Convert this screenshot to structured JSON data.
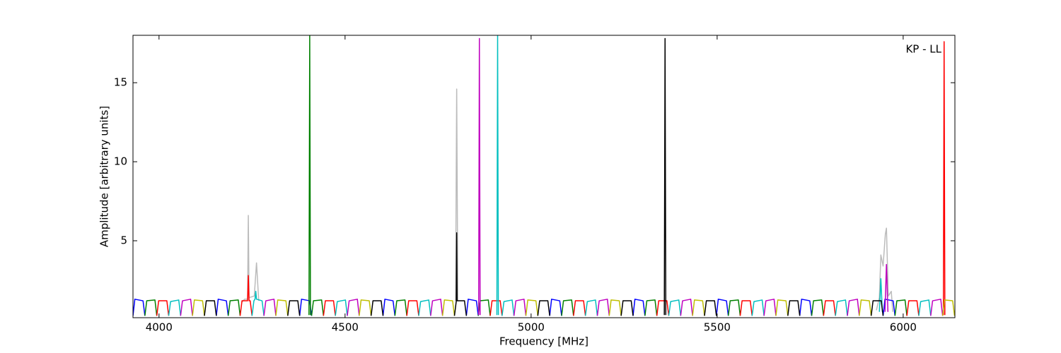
{
  "chart_data": {
    "type": "line",
    "xlabel": "Frequency [MHz]",
    "ylabel": "Amplitude [arbitrary units]",
    "annotation": "KP - LL",
    "xlim": [
      3930,
      6139
    ],
    "ylim": [
      0.13,
      18
    ],
    "xticks": [
      4000,
      4500,
      5000,
      5500,
      6000
    ],
    "yticks": [
      5,
      10,
      15
    ],
    "series": [
      {
        "color": "#bbbbbb",
        "x": [
          4222,
          4230,
          4238,
          4240,
          4242,
          4256,
          4262,
          4268,
          null,
          4797,
          4800,
          4803,
          null,
          5928,
          5936,
          5940,
          5946,
          5952,
          5955,
          5960,
          5968,
          5972
        ],
        "values": [
          1.1,
          1.3,
          1.3,
          6.6,
          1.4,
          1.5,
          3.6,
          1.2,
          null,
          1.2,
          14.6,
          1.2,
          null,
          0.6,
          1.4,
          4.1,
          3.4,
          5.4,
          5.8,
          1.5,
          1.8,
          0.5
        ]
      },
      {
        "color": "#0000ff",
        "x": [
          3930,
          3935,
          3957,
          3962,
          null,
          4154,
          4159,
          4181,
          4186,
          null,
          4378,
          4383,
          4405,
          4410,
          null,
          4602,
          4607,
          4629,
          4634,
          null,
          4826,
          4831,
          4853,
          4858,
          null,
          5050,
          5055,
          5077,
          5082,
          null,
          5274,
          5279,
          5301,
          5306,
          null,
          5498,
          5503,
          5525,
          5530,
          null,
          5722,
          5727,
          5749,
          5754,
          null,
          5946,
          5951,
          5973,
          5978
        ],
        "values": [
          0.25,
          1.3,
          1.2,
          0.25,
          null,
          0.25,
          1.3,
          1.2,
          0.25,
          null,
          0.25,
          1.3,
          1.2,
          0.25,
          null,
          0.25,
          1.3,
          1.2,
          0.25,
          null,
          0.25,
          1.3,
          1.2,
          0.25,
          null,
          0.25,
          1.3,
          1.2,
          0.25,
          null,
          0.25,
          1.3,
          1.2,
          0.25,
          null,
          0.25,
          1.3,
          1.2,
          0.25,
          null,
          0.25,
          1.3,
          1.2,
          0.25,
          null,
          0.25,
          1.3,
          1.2,
          0.25
        ]
      },
      {
        "color": "#008000",
        "x": [
          3962,
          3967,
          3989,
          3994,
          null,
          4186,
          4191,
          4213,
          4218,
          null,
          4410,
          4415,
          4437,
          4442,
          null,
          4634,
          4639,
          4661,
          4666,
          null,
          4858,
          4863,
          4885,
          4890,
          null,
          5082,
          5087,
          5109,
          5114,
          null,
          5306,
          5311,
          5333,
          5338,
          null,
          5530,
          5535,
          5557,
          5562,
          null,
          5754,
          5759,
          5781,
          5786,
          null,
          5978,
          5983,
          6005,
          6010,
          null,
          4403,
          4405,
          4407
        ],
        "values": [
          0.25,
          1.2,
          1.25,
          0.25,
          null,
          0.25,
          1.2,
          1.25,
          0.25,
          null,
          0.25,
          1.2,
          1.25,
          0.25,
          null,
          0.25,
          1.2,
          1.25,
          0.25,
          null,
          0.25,
          1.2,
          1.25,
          0.25,
          null,
          0.25,
          1.2,
          1.25,
          0.25,
          null,
          0.25,
          1.2,
          1.25,
          0.25,
          null,
          0.25,
          1.2,
          1.25,
          0.25,
          null,
          0.25,
          1.2,
          1.25,
          0.25,
          null,
          0.25,
          1.2,
          1.25,
          0.25,
          null,
          0.3,
          18,
          0.3
        ]
      },
      {
        "color": "#ff0000",
        "x": [
          3994,
          3999,
          4021,
          4026,
          null,
          4218,
          4223,
          4238,
          4240,
          4242,
          4245,
          4250,
          null,
          4442,
          4447,
          4469,
          4474,
          null,
          4666,
          4671,
          4693,
          4698,
          null,
          4890,
          4895,
          4917,
          4922,
          null,
          5114,
          5119,
          5141,
          5146,
          null,
          5338,
          5343,
          5365,
          5370,
          null,
          5562,
          5567,
          5589,
          5594,
          null,
          5786,
          5791,
          5813,
          5818,
          null,
          6010,
          6015,
          6037,
          6042,
          null,
          6108,
          6110,
          6112
        ],
        "values": [
          0.25,
          1.2,
          1.2,
          0.25,
          null,
          0.25,
          1.2,
          1.2,
          2.8,
          1.2,
          1.2,
          0.25,
          null,
          0.25,
          1.2,
          1.2,
          0.25,
          null,
          0.25,
          1.2,
          1.2,
          0.25,
          null,
          0.25,
          1.2,
          1.2,
          0.25,
          null,
          0.25,
          1.2,
          1.2,
          0.25,
          null,
          0.25,
          1.2,
          1.2,
          0.25,
          null,
          0.25,
          1.2,
          1.2,
          0.25,
          null,
          0.25,
          1.2,
          1.2,
          0.25,
          null,
          0.25,
          1.2,
          1.2,
          0.25,
          null,
          0.3,
          17.6,
          0.3
        ]
      },
      {
        "color": "#00bfbf",
        "x": [
          4026,
          4031,
          4053,
          4058,
          null,
          4250,
          4255,
          4258,
          4260,
          4262,
          4277,
          4282,
          null,
          4474,
          4479,
          4501,
          4506,
          null,
          4698,
          4703,
          4725,
          4730,
          null,
          4922,
          4927,
          4949,
          4954,
          null,
          5146,
          5151,
          5173,
          5178,
          null,
          5370,
          5375,
          5397,
          5402,
          null,
          5594,
          5599,
          5621,
          5626,
          null,
          5818,
          5823,
          5845,
          5850,
          null,
          6042,
          6047,
          6069,
          6074,
          null,
          4908,
          4910,
          4912,
          null,
          5936,
          5940,
          5944
        ],
        "values": [
          0.25,
          1.15,
          1.25,
          0.25,
          null,
          0.25,
          1.2,
          1.3,
          1.8,
          1.3,
          1.2,
          0.25,
          null,
          0.25,
          1.15,
          1.25,
          0.25,
          null,
          0.25,
          1.15,
          1.25,
          0.25,
          null,
          0.25,
          1.15,
          1.25,
          0.25,
          null,
          0.25,
          1.15,
          1.25,
          0.25,
          null,
          0.25,
          1.15,
          1.25,
          0.25,
          null,
          0.25,
          1.15,
          1.25,
          0.25,
          null,
          0.25,
          1.15,
          1.25,
          0.25,
          null,
          0.25,
          1.15,
          1.25,
          0.25,
          null,
          0.3,
          18,
          0.3,
          null,
          0.5,
          2.6,
          0.5
        ]
      },
      {
        "color": "#bf00bf",
        "x": [
          4058,
          4063,
          4085,
          4090,
          null,
          4282,
          4287,
          4309,
          4314,
          null,
          4506,
          4511,
          4533,
          4538,
          null,
          4730,
          4735,
          4757,
          4762,
          null,
          4954,
          4959,
          4981,
          4986,
          null,
          5178,
          5183,
          5205,
          5210,
          null,
          5402,
          5407,
          5429,
          5434,
          null,
          5626,
          5631,
          5653,
          5658,
          null,
          5850,
          5855,
          5877,
          5882,
          null,
          6074,
          6079,
          6101,
          6106,
          null,
          4859,
          4861,
          4863,
          null,
          5951,
          5955,
          5959
        ],
        "values": [
          0.25,
          1.2,
          1.3,
          0.25,
          null,
          0.25,
          1.2,
          1.3,
          0.25,
          null,
          0.25,
          1.2,
          1.3,
          0.25,
          null,
          0.25,
          1.2,
          1.3,
          0.25,
          null,
          0.25,
          1.2,
          1.3,
          0.25,
          null,
          0.25,
          1.2,
          1.3,
          0.25,
          null,
          0.25,
          1.2,
          1.3,
          0.25,
          null,
          0.25,
          1.2,
          1.3,
          0.25,
          null,
          0.25,
          1.2,
          1.3,
          0.25,
          null,
          0.25,
          1.2,
          1.3,
          0.25,
          null,
          0.3,
          17.8,
          0.3,
          null,
          0.5,
          3.5,
          0.5
        ]
      },
      {
        "color": "#bfbf00",
        "x": [
          4090,
          4095,
          4117,
          4122,
          null,
          4314,
          4319,
          4341,
          4346,
          null,
          4538,
          4543,
          4565,
          4570,
          null,
          4762,
          4767,
          4789,
          4794,
          null,
          4986,
          4991,
          5013,
          5018,
          null,
          5210,
          5215,
          5237,
          5242,
          null,
          5434,
          5439,
          5461,
          5466,
          null,
          5658,
          5663,
          5685,
          5690,
          null,
          5882,
          5887,
          5909,
          5914,
          null,
          6106,
          6111,
          6133,
          6138
        ],
        "values": [
          0.25,
          1.25,
          1.2,
          0.25,
          null,
          0.25,
          1.25,
          1.2,
          0.25,
          null,
          0.25,
          1.25,
          1.2,
          0.25,
          null,
          0.25,
          1.25,
          1.2,
          0.25,
          null,
          0.25,
          1.25,
          1.2,
          0.25,
          null,
          0.25,
          1.25,
          1.2,
          0.25,
          null,
          0.25,
          1.25,
          1.2,
          0.25,
          null,
          0.25,
          1.25,
          1.2,
          0.25,
          null,
          0.25,
          1.25,
          1.2,
          0.25,
          null,
          0.25,
          1.25,
          1.2,
          0.25
        ]
      },
      {
        "color": "#000000",
        "x": [
          4122,
          4127,
          4149,
          4154,
          null,
          4346,
          4351,
          4373,
          4378,
          null,
          4570,
          4575,
          4597,
          4602,
          null,
          4794,
          4799,
          4800,
          4801,
          4821,
          4826,
          null,
          5018,
          5023,
          5045,
          5050,
          null,
          5242,
          5247,
          5269,
          5274,
          null,
          5466,
          5471,
          5493,
          5498,
          null,
          5690,
          5695,
          5717,
          5722,
          null,
          5914,
          5919,
          5941,
          5946,
          null,
          5358,
          5360,
          5362
        ],
        "values": [
          0.25,
          1.2,
          1.2,
          0.25,
          null,
          0.25,
          1.2,
          1.2,
          0.25,
          null,
          0.25,
          1.2,
          1.2,
          0.25,
          null,
          0.25,
          1.2,
          5.5,
          1.2,
          1.2,
          0.25,
          null,
          0.25,
          1.2,
          1.2,
          0.25,
          null,
          0.25,
          1.2,
          1.2,
          0.25,
          null,
          0.25,
          1.2,
          1.2,
          0.25,
          null,
          0.25,
          1.2,
          1.2,
          0.25,
          null,
          0.25,
          1.2,
          1.2,
          0.25,
          null,
          0.3,
          17.8,
          0.3
        ]
      }
    ]
  }
}
